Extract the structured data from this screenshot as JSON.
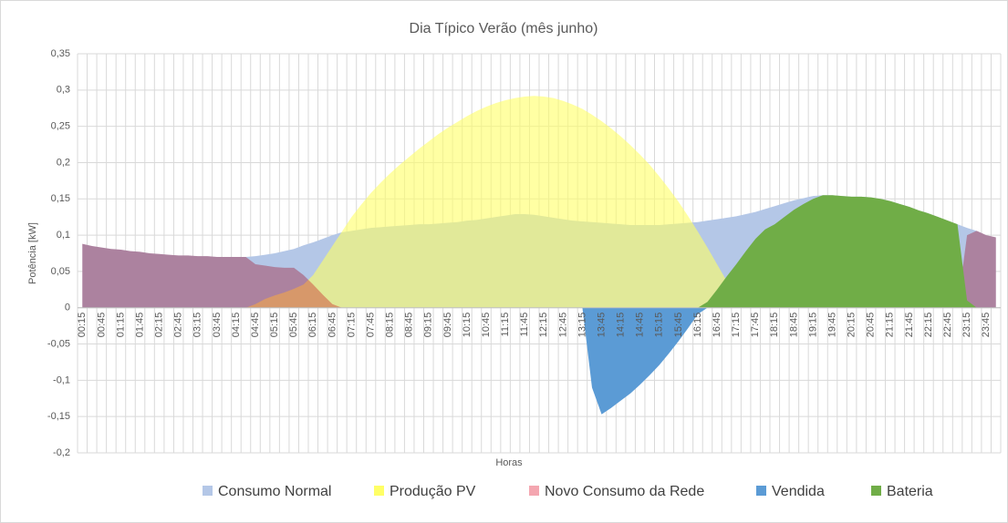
{
  "chart_data": {
    "type": "area",
    "title": "Dia Típico Verão (mês junho)",
    "x_label": "Horas",
    "y_label": "Potência [kW]",
    "categories": [
      "00:15",
      null,
      "00:45",
      null,
      "01:15",
      null,
      "01:45",
      null,
      "02:15",
      null,
      "02:45",
      null,
      "03:15",
      null,
      "03:45",
      null,
      "04:15",
      null,
      "04:45",
      null,
      "05:15",
      null,
      "05:45",
      null,
      "06:15",
      null,
      "06:45",
      null,
      "07:15",
      null,
      "07:45",
      null,
      "08:15",
      null,
      "08:45",
      null,
      "09:15",
      null,
      "09:45",
      null,
      "10:15",
      null,
      "10:45",
      null,
      "11:15",
      null,
      "11:45",
      null,
      "12:15",
      null,
      "12:45",
      null,
      "13:15",
      null,
      "13:45",
      null,
      "14:15",
      null,
      "14:45",
      null,
      "15:15",
      null,
      "15:45",
      null,
      "16:15",
      null,
      "16:45",
      null,
      "17:15",
      null,
      "17:45",
      null,
      "18:15",
      null,
      "18:45",
      null,
      "19:15",
      null,
      "19:45",
      null,
      "20:15",
      null,
      "20:45",
      null,
      "21:15",
      null,
      "21:45",
      null,
      "22:15",
      null,
      "22:45",
      null,
      "23:15",
      null,
      "23:45",
      null
    ],
    "series": [
      {
        "name": "Consumo Normal",
        "color": "#b4c7e7",
        "values": [
          0.088,
          0.085,
          0.083,
          0.081,
          0.08,
          0.078,
          0.077,
          0.075,
          0.074,
          0.073,
          0.072,
          0.072,
          0.071,
          0.071,
          0.07,
          0.07,
          0.07,
          0.07,
          0.071,
          0.073,
          0.075,
          0.078,
          0.081,
          0.086,
          0.09,
          0.095,
          0.1,
          0.104,
          0.106,
          0.108,
          0.11,
          0.111,
          0.112,
          0.113,
          0.114,
          0.115,
          0.115,
          0.116,
          0.117,
          0.118,
          0.12,
          0.121,
          0.123,
          0.125,
          0.127,
          0.129,
          0.129,
          0.128,
          0.126,
          0.124,
          0.122,
          0.12,
          0.119,
          0.118,
          0.117,
          0.116,
          0.115,
          0.114,
          0.114,
          0.114,
          0.114,
          0.115,
          0.116,
          0.117,
          0.118,
          0.12,
          0.122,
          0.124,
          0.126,
          0.129,
          0.132,
          0.136,
          0.14,
          0.144,
          0.148,
          0.151,
          0.154,
          0.155,
          0.155,
          0.154,
          0.153,
          0.153,
          0.152,
          0.15,
          0.147,
          0.143,
          0.139,
          0.134,
          0.13,
          0.125,
          0.12,
          0.115,
          0.11,
          0.106,
          0.1,
          0.097
        ]
      },
      {
        "name": "Produção PV",
        "color": "#ffff66",
        "values": [
          0,
          0,
          0,
          0,
          0,
          0,
          0,
          0,
          0,
          0,
          0,
          0,
          0,
          0,
          0,
          0,
          0,
          0,
          0.005,
          0.012,
          0.017,
          0.021,
          0.026,
          0.032,
          0.045,
          0.065,
          0.085,
          0.105,
          0.125,
          0.142,
          0.158,
          0.172,
          0.185,
          0.197,
          0.208,
          0.219,
          0.229,
          0.239,
          0.248,
          0.256,
          0.264,
          0.271,
          0.277,
          0.282,
          0.286,
          0.289,
          0.291,
          0.292,
          0.291,
          0.289,
          0.285,
          0.28,
          0.274,
          0.266,
          0.257,
          0.247,
          0.236,
          0.224,
          0.211,
          0.197,
          0.181,
          0.164,
          0.146,
          0.126,
          0.105,
          0.083,
          0.06,
          0.037,
          0.015,
          0,
          0,
          0,
          0,
          0,
          0,
          0,
          0,
          0,
          0,
          0,
          0,
          0,
          0,
          0,
          0,
          0,
          0,
          0,
          0,
          0,
          0,
          0,
          0,
          0,
          0,
          0
        ]
      },
      {
        "name": "Novo Consumo da Rede",
        "color": "#f4a6b0",
        "values": [
          0.088,
          0.085,
          0.083,
          0.081,
          0.08,
          0.078,
          0.077,
          0.075,
          0.074,
          0.073,
          0.072,
          0.072,
          0.071,
          0.071,
          0.07,
          0.07,
          0.07,
          0.07,
          0.06,
          0.058,
          0.056,
          0.055,
          0.055,
          0.045,
          0.032,
          0.018,
          0.005,
          0,
          0,
          0,
          0,
          0,
          0,
          0,
          0,
          0,
          0,
          0,
          0,
          0,
          0,
          0,
          0,
          0,
          0,
          0,
          0,
          0,
          0,
          0,
          0,
          0,
          0,
          0,
          0,
          0,
          0,
          0,
          0,
          0,
          0,
          0,
          0,
          0,
          0,
          0,
          0,
          0,
          0,
          0,
          0,
          0,
          0,
          0,
          0,
          0,
          0,
          0,
          0,
          0,
          0,
          0,
          0,
          0,
          0,
          0,
          0,
          0,
          0,
          0,
          0,
          0,
          0.1,
          0.106,
          0.1,
          0.097
        ]
      },
      {
        "name": "Vendida",
        "color": "#5b9bd5",
        "values": [
          0,
          0,
          0,
          0,
          0,
          0,
          0,
          0,
          0,
          0,
          0,
          0,
          0,
          0,
          0,
          0,
          0,
          0,
          0,
          0,
          0,
          0,
          0,
          0,
          0,
          0,
          0,
          0,
          0,
          0,
          0,
          0,
          0,
          0,
          0,
          0,
          0,
          0,
          0,
          0,
          0,
          0,
          0,
          0,
          0,
          0,
          0,
          0,
          0,
          0,
          0,
          0,
          0,
          -0.11,
          -0.147,
          -0.138,
          -0.128,
          -0.118,
          -0.106,
          -0.093,
          -0.079,
          -0.063,
          -0.046,
          -0.028,
          -0.009,
          0,
          0,
          0,
          0,
          0,
          0,
          0,
          0,
          0,
          0,
          0,
          0,
          0,
          0,
          0,
          0,
          0,
          0,
          0,
          0,
          0,
          0,
          0,
          0,
          0,
          0,
          0,
          0,
          0,
          0,
          0
        ]
      },
      {
        "name": "Bateria",
        "color": "#70ad47",
        "values": [
          0,
          0,
          0,
          0,
          0,
          0,
          0,
          0,
          0,
          0,
          0,
          0,
          0,
          0,
          0,
          0,
          0,
          0,
          0,
          0,
          0,
          0,
          0,
          0,
          0,
          0,
          0,
          0,
          0,
          0,
          0,
          0,
          0,
          0,
          0,
          0,
          0,
          0,
          0,
          0,
          0,
          0,
          0,
          0,
          0,
          0,
          0,
          0,
          0,
          0,
          0,
          0,
          0,
          0,
          0,
          0,
          0,
          0,
          0,
          0,
          0,
          0,
          0,
          0,
          0,
          0.008,
          0.025,
          0.043,
          0.06,
          0.078,
          0.095,
          0.108,
          0.115,
          0.125,
          0.135,
          0.143,
          0.15,
          0.155,
          0.155,
          0.154,
          0.153,
          0.153,
          0.152,
          0.15,
          0.147,
          0.143,
          0.139,
          0.134,
          0.13,
          0.125,
          0.12,
          0.115,
          0.01,
          0,
          0,
          0
        ]
      }
    ],
    "ylim": [
      -0.2,
      0.35
    ],
    "yticks": [
      {
        "value": 0.35,
        "label": "0,35"
      },
      {
        "value": 0.3,
        "label": "0,3"
      },
      {
        "value": 0.25,
        "label": "0,25"
      },
      {
        "value": 0.2,
        "label": "0,2"
      },
      {
        "value": 0.15,
        "label": "0,15"
      },
      {
        "value": 0.1,
        "label": "0,1"
      },
      {
        "value": 0.05,
        "label": "0,05"
      },
      0,
      {
        "value": -0.05,
        "label": "-0,05"
      },
      {
        "value": -0.1,
        "label": "-0,1"
      },
      {
        "value": -0.15,
        "label": "-0,15"
      },
      {
        "value": -0.2,
        "label": "-0,2"
      }
    ],
    "grid": true,
    "legend": "bottom"
  }
}
